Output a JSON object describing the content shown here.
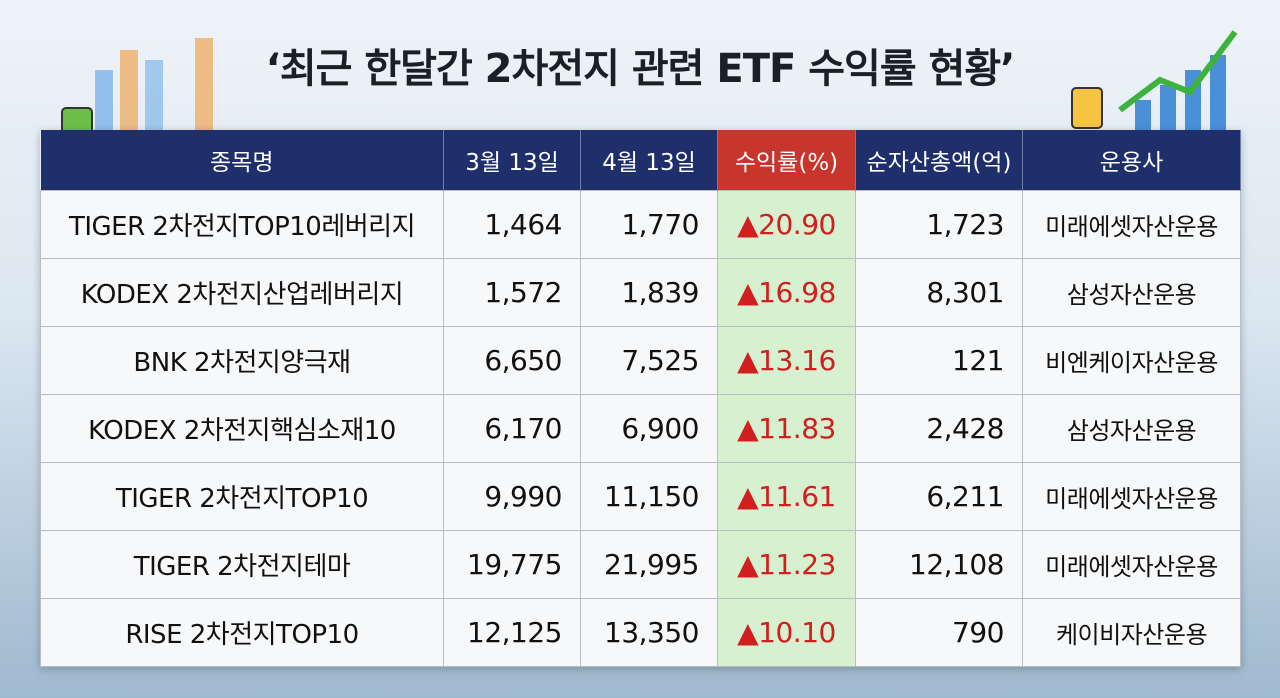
{
  "title": "‘최근 한달간 2차전지 관련 ETF 수익률 현황’",
  "table": {
    "headers": [
      "종목명",
      "3월 13일",
      "4월 13일",
      "수익률(%)",
      "순자산총액(억)",
      "운용사"
    ],
    "rows": [
      [
        "TIGER 2차전지TOP10레버리지",
        "1,464",
        "1,770",
        "▲20.90",
        "1,723",
        "미래에셋자산운용"
      ],
      [
        "KODEX 2차전지산업레버리지",
        "1,572",
        "1,839",
        "▲16.98",
        "8,301",
        "삼성자산운용"
      ],
      [
        "BNK 2차전지양극재",
        "6,650",
        "7,525",
        "▲13.16",
        "121",
        "비엔케이자산운용"
      ],
      [
        "KODEX 2차전지핵심소재10",
        "6,170",
        "6,900",
        "▲11.83",
        "2,428",
        "삼성자산운용"
      ],
      [
        "TIGER 2차전지TOP10",
        "9,990",
        "11,150",
        "▲11.61",
        "6,211",
        "미래에셋자산운용"
      ],
      [
        "TIGER 2차전지테마",
        "19,775",
        "21,995",
        "▲11.23",
        "12,108",
        "미래에셋자산운용"
      ],
      [
        "RISE 2차전지TOP10",
        "12,125",
        "13,350",
        "▲10.10",
        "790",
        "케이비자산운용"
      ]
    ]
  }
}
